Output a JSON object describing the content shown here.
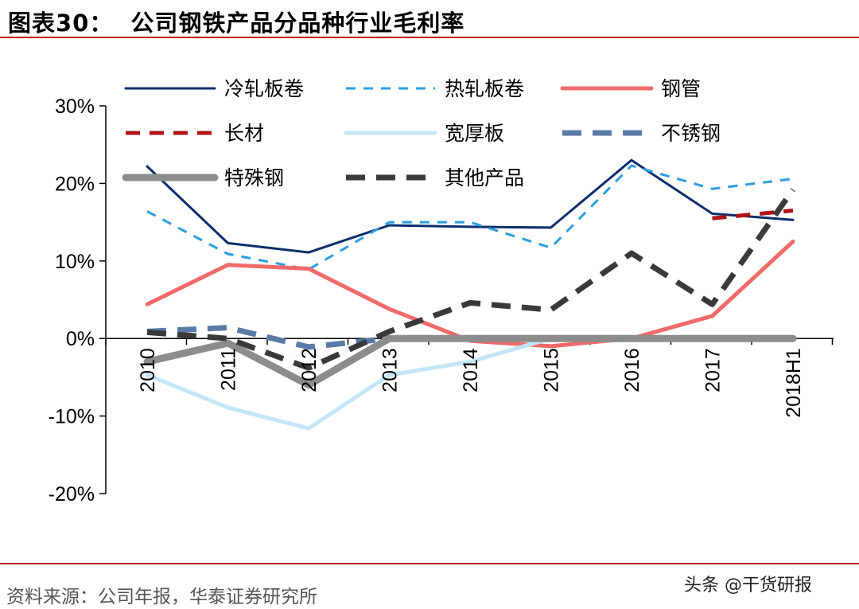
{
  "figure": {
    "number": "图表30：",
    "title": "公司钢铁产品分品种行业毛利率",
    "source": "资料来源：公司年报，华泰证券研究所",
    "watermark": "头条 @干货研报"
  },
  "chart_data": {
    "type": "line",
    "categories": [
      "2010",
      "2011",
      "2012",
      "2013",
      "2014",
      "2015",
      "2016",
      "2017",
      "2018H1"
    ],
    "ylim": [
      -20,
      30
    ],
    "yticks": [
      30,
      20,
      10,
      0,
      -10,
      -20
    ],
    "ytick_labels": [
      "30%",
      "20%",
      "10%",
      "0%",
      "-10%",
      "-20%"
    ],
    "grid": false,
    "legend_position": "top",
    "series": [
      {
        "name": "冷轧板卷",
        "color": "#0b2d6b",
        "dash": "solid",
        "width": 3,
        "values": [
          22.2,
          12.3,
          11.1,
          14.6,
          14.4,
          14.3,
          23.0,
          16.1,
          15.3
        ]
      },
      {
        "name": "热轧板卷",
        "color": "#2a9ee0",
        "dash": "dashed",
        "width": 3,
        "values": [
          16.4,
          10.9,
          8.9,
          15.0,
          15.0,
          11.7,
          22.3,
          19.3,
          20.6
        ]
      },
      {
        "name": "钢管",
        "color": "#f06a6a",
        "dash": "solid",
        "width": 5,
        "values": [
          4.4,
          9.5,
          9.0,
          3.8,
          -0.3,
          -1.0,
          0.0,
          2.9,
          12.5
        ]
      },
      {
        "name": "长材",
        "color": "#b01518",
        "dash": "dashed",
        "width": 5,
        "values": [
          null,
          null,
          null,
          null,
          null,
          null,
          null,
          15.5,
          16.5
        ]
      },
      {
        "name": "宽厚板",
        "color": "#c3e5f7",
        "dash": "solid",
        "width": 5,
        "values": [
          -4.7,
          -8.9,
          -11.6,
          -4.7,
          -3.0,
          0.0,
          null,
          null,
          null
        ]
      },
      {
        "name": "不锈钢",
        "color": "#5a7aa6",
        "dash": "dashed",
        "width": 7,
        "values": [
          0.9,
          1.4,
          -1.1,
          0.0,
          null,
          null,
          null,
          null,
          null
        ]
      },
      {
        "name": "特殊钢",
        "color": "#8c8c8c",
        "dash": "solid",
        "width": 9,
        "values": [
          -3.0,
          -0.6,
          -6.0,
          0.0,
          0.0,
          0.0,
          0.0,
          0.0,
          0.0
        ]
      },
      {
        "name": "其他产品",
        "color": "#3a3a3a",
        "dash": "dashed",
        "width": 7,
        "values": [
          0.8,
          0.0,
          -3.8,
          0.9,
          4.6,
          3.7,
          11.0,
          4.4,
          19.2
        ]
      }
    ]
  }
}
